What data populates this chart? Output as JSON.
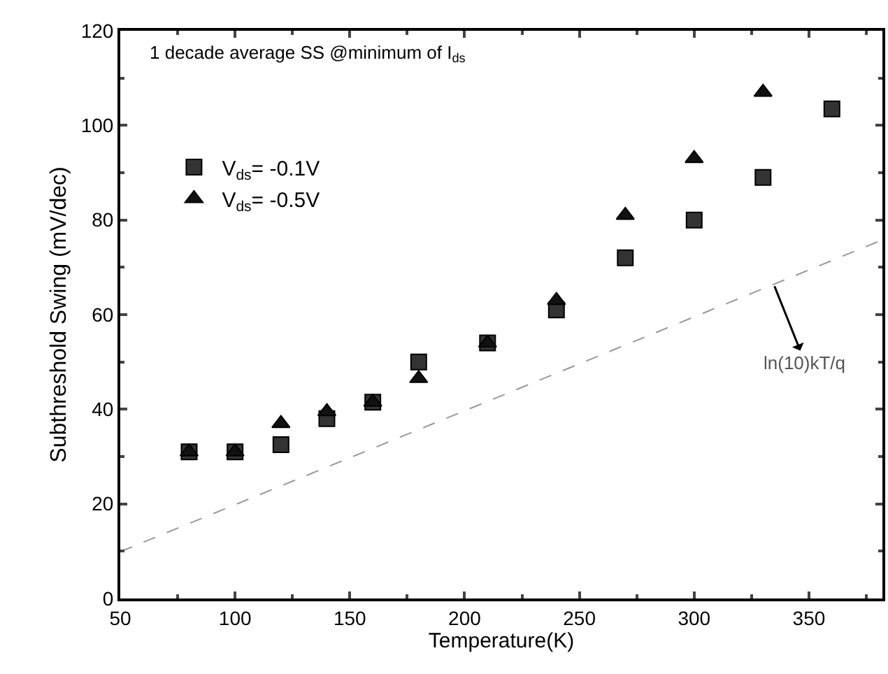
{
  "chart_data": {
    "type": "scatter",
    "xlabel": "Temperature(K)",
    "ylabel": "Subthreshold Swing (mV/dec)",
    "annotations": [
      "1 decade average SS @minimum of I$_{ds}$",
      {
        "text": "ln(10)kT/q",
        "x": 335,
        "y": 66
      }
    ],
    "xlim": [
      50,
      382
    ],
    "xticks": [
      50,
      100,
      150,
      200,
      250,
      300,
      350
    ],
    "ylim": [
      0,
      120
    ],
    "yticks": [
      0,
      20,
      40,
      60,
      80,
      100,
      120
    ],
    "grid": false,
    "legend": "top left",
    "series": [
      {
        "name": "V$_{ds}$= -0.1V",
        "color": "#333333",
        "marker": "square",
        "x": [
          80,
          100,
          120,
          140,
          160,
          180,
          210,
          240,
          270,
          300,
          330,
          360
        ],
        "values": [
          31,
          31,
          32.5,
          38,
          41.5,
          50,
          54,
          61,
          72,
          80,
          89,
          103.5
        ]
      },
      {
        "name": "V$_{ds}$= -0.5V",
        "color": "#111111",
        "marker": "triangle",
        "x": [
          80,
          100,
          120,
          140,
          160,
          180,
          210,
          240,
          270,
          300,
          330
        ],
        "values": [
          31,
          31,
          37,
          39.5,
          41.5,
          46.5,
          54,
          63,
          81,
          93,
          107
        ]
      },
      {
        "type": "line",
        "color": "#999999",
        "line_style": "dashed",
        "marker": "none",
        "x": [
          50,
          382
        ],
        "values": [
          9.9,
          75.8
        ]
      }
    ]
  }
}
